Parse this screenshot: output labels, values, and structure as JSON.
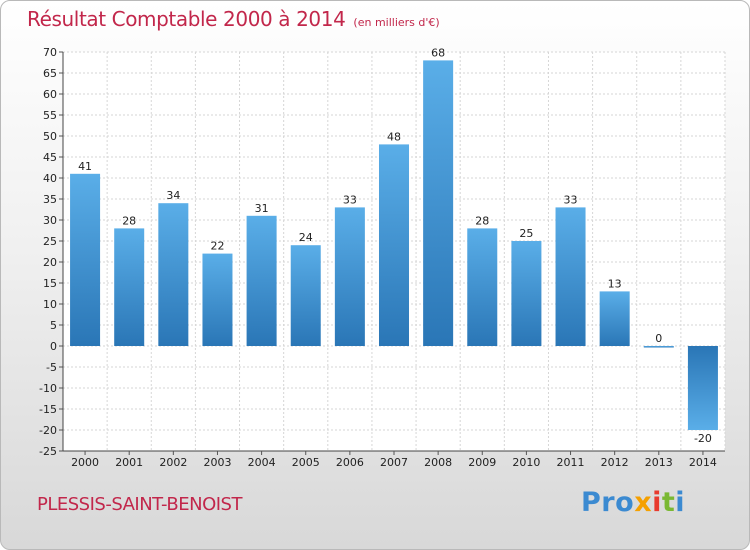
{
  "header": {
    "title": "Résultat Comptable 2000 à 2014",
    "unit": "(en milliers d'€)"
  },
  "footer": {
    "city": "PLESSIS-SAINT-BENOIST",
    "logo_letters": [
      "P",
      "r",
      "o",
      "x",
      "i",
      "t",
      "i"
    ]
  },
  "colors": {
    "title": "#c2274b",
    "bar_light": "#5aaee8",
    "bar_dark": "#2a76b6",
    "logo": [
      "#3b8ad1",
      "#3b8ad1",
      "#3b8ad1",
      "#f5a000",
      "#e83a2e",
      "#7ab833",
      "#3b8ad1"
    ]
  },
  "chart_data": {
    "type": "bar",
    "title": "Résultat Comptable 2000 à 2014",
    "xlabel": "",
    "ylabel": "",
    "categories": [
      "2000",
      "2001",
      "2002",
      "2003",
      "2004",
      "2005",
      "2006",
      "2007",
      "2008",
      "2009",
      "2010",
      "2011",
      "2012",
      "2013",
      "2014"
    ],
    "values": [
      41,
      28,
      34,
      22,
      31,
      24,
      33,
      48,
      68,
      28,
      25,
      33,
      13,
      0,
      -20
    ],
    "labels": [
      "41",
      "28",
      "34",
      "22",
      "31",
      "24",
      "33",
      "48",
      "68",
      "28",
      "25",
      "33",
      "13",
      "0",
      "-20"
    ],
    "ylim": [
      -25,
      70
    ],
    "yticks": [
      70,
      65,
      60,
      55,
      50,
      45,
      40,
      35,
      30,
      25,
      20,
      15,
      10,
      5,
      0,
      -5,
      -10,
      -15,
      -20,
      -25
    ],
    "grid": true,
    "legend": "none"
  }
}
